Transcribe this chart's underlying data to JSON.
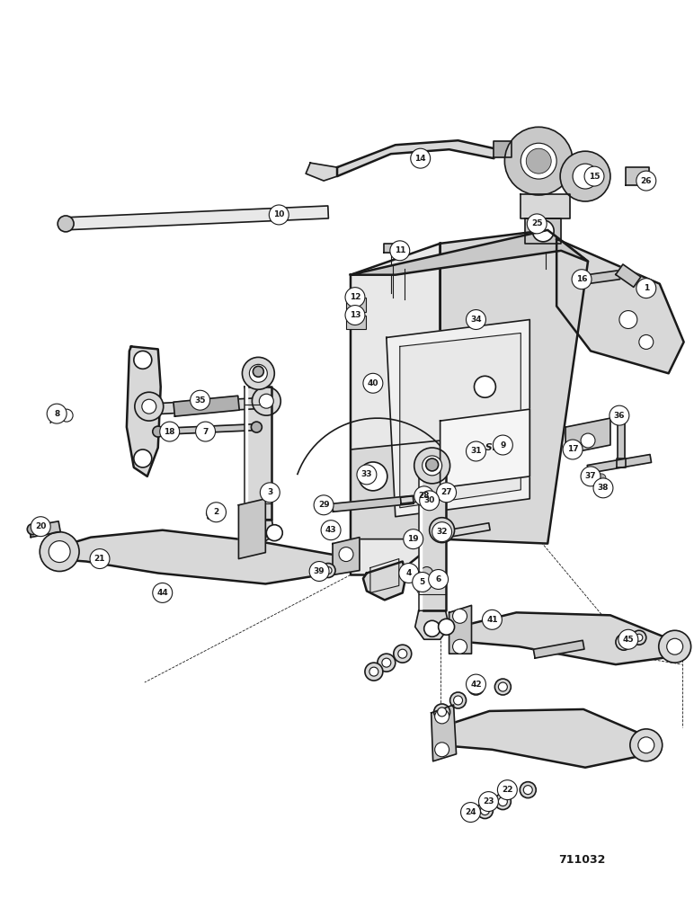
{
  "figure_number": "711032",
  "bg": "#ffffff",
  "lc": "#1a1a1a",
  "fig_w": 7.72,
  "fig_h": 10.0,
  "dpi": 100
}
